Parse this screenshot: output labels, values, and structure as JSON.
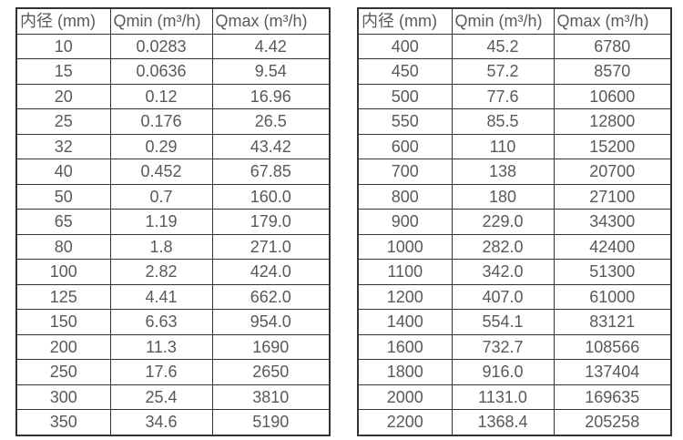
{
  "colors": {
    "background": "#ffffff",
    "border": "#333333",
    "text": "#595959"
  },
  "tables": [
    {
      "name": "flow-rate-table-small-diameters",
      "columns": [
        "内径 (mm)",
        "Qmin (m³/h)",
        "Qmax (m³/h)"
      ],
      "rows": [
        [
          "10",
          "0.0283",
          "4.42"
        ],
        [
          "15",
          "0.0636",
          "9.54"
        ],
        [
          "20",
          "0.12",
          "16.96"
        ],
        [
          "25",
          "0.176",
          "26.5"
        ],
        [
          "32",
          "0.29",
          "43.42"
        ],
        [
          "40",
          "0.452",
          "67.85"
        ],
        [
          "50",
          "0.7",
          "160.0"
        ],
        [
          "65",
          "1.19",
          "179.0"
        ],
        [
          "80",
          "1.8",
          "271.0"
        ],
        [
          "100",
          "2.82",
          "424.0"
        ],
        [
          "125",
          "4.41",
          "662.0"
        ],
        [
          "150",
          "6.63",
          "954.0"
        ],
        [
          "200",
          "11.3",
          "1690"
        ],
        [
          "250",
          "17.6",
          "2650"
        ],
        [
          "300",
          "25.4",
          "3810"
        ],
        [
          "350",
          "34.6",
          "5190"
        ]
      ]
    },
    {
      "name": "flow-rate-table-large-diameters",
      "columns": [
        "内径 (mm)",
        "Qmin (m³/h)",
        "Qmax (m³/h)"
      ],
      "rows": [
        [
          "400",
          "45.2",
          "6780"
        ],
        [
          "450",
          "57.2",
          "8570"
        ],
        [
          "500",
          "77.6",
          "10600"
        ],
        [
          "550",
          "85.5",
          "12800"
        ],
        [
          "600",
          "110",
          "15200"
        ],
        [
          "700",
          "138",
          "20700"
        ],
        [
          "800",
          "180",
          "27100"
        ],
        [
          "900",
          "229.0",
          "34300"
        ],
        [
          "1000",
          "282.0",
          "42400"
        ],
        [
          "1100",
          "342.0",
          "51300"
        ],
        [
          "1200",
          "407.0",
          "61000"
        ],
        [
          "1400",
          "554.1",
          "83121"
        ],
        [
          "1600",
          "732.7",
          "108566"
        ],
        [
          "1800",
          "916.0",
          "137404"
        ],
        [
          "2000",
          "1131.0",
          "169635"
        ],
        [
          "2200",
          "1368.4",
          "205258"
        ]
      ]
    }
  ]
}
